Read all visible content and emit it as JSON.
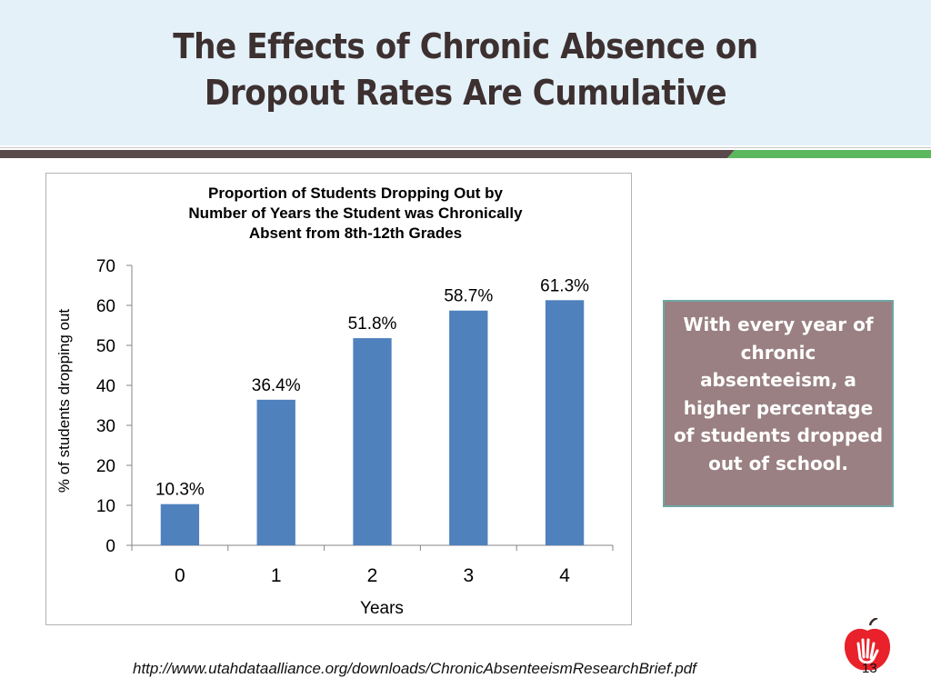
{
  "slide": {
    "title_line1": "The Effects of Chronic Absence on",
    "title_line2": "Dropout Rates Are Cumulative",
    "callout_text": "With every year of chronic absenteeism, a higher percentage of students dropped out of school.",
    "source_url": "http://www.utahdataalliance.org/downloads/ChronicAbsenteeismResearchBrief.pdf",
    "page_number": "13",
    "colors": {
      "title": "#3d3030",
      "header_bg": "#e4f1f9",
      "band_dark": "#5a4a4b",
      "band_green": "#5cb85c",
      "bar": "#4f81bd",
      "callout_bg": "#9a8082",
      "callout_border": "#6ea7a4",
      "logo_apple": "#e8212a"
    },
    "logo_icon": "apple-hand-logo-icon"
  },
  "chart_data": {
    "type": "bar",
    "title_lines": [
      "Proportion of Students Dropping Out by",
      "Number of Years the Student was Chronically",
      "Absent from 8th-12th Grades"
    ],
    "categories": [
      "0",
      "1",
      "2",
      "3",
      "4"
    ],
    "values": [
      10.3,
      36.4,
      51.8,
      58.7,
      61.3
    ],
    "data_labels": [
      "10.3%",
      "36.4%",
      "51.8%",
      "58.7%",
      "61.3%"
    ],
    "xlabel": "Years",
    "ylabel": "% of students dropping out",
    "ylim": [
      0,
      70
    ],
    "yticks": [
      0,
      10,
      20,
      30,
      40,
      50,
      60,
      70
    ],
    "grid": false,
    "legend": "none"
  }
}
